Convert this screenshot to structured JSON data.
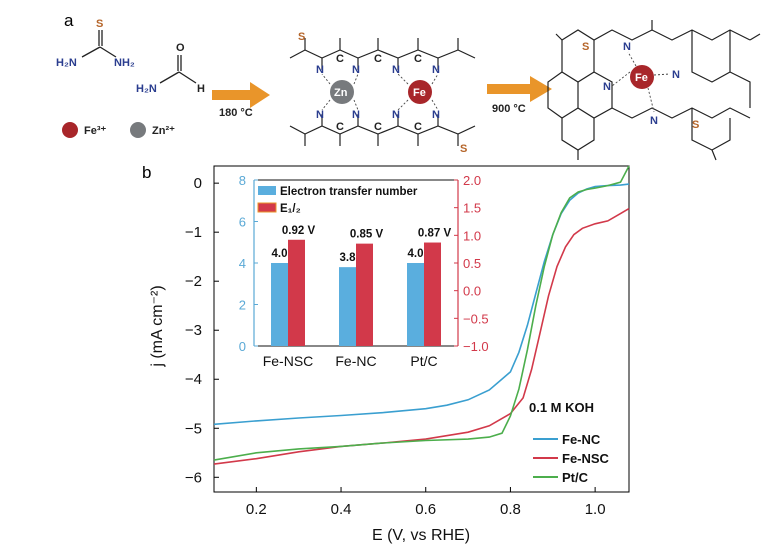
{
  "panel_a": {
    "label": "a",
    "reactants": {
      "S": "S",
      "H2N_left": "H₂N",
      "NH2": "NH₂",
      "O": "O",
      "H2N_form": "H₂N",
      "H": "H"
    },
    "cations": [
      {
        "label": "Fe³⁺",
        "color": "#a8262a"
      },
      {
        "label": "Zn²⁺",
        "color": "#777a7d"
      }
    ],
    "step1": "180 °C",
    "step2": "900 °C",
    "arrow_color": "#e9952a",
    "polymer_atoms": {
      "N": "N",
      "C": "C",
      "S": "S",
      "Zn": "Zn",
      "Fe": "Fe"
    },
    "product_atoms": {
      "S": "S",
      "N": "N",
      "Fe": "Fe"
    }
  },
  "panel_b": {
    "label": "b",
    "condition": "0.1 M KOH",
    "colors": {
      "Fe-NC": "#3a9fd0",
      "Fe-NSC": "#d2394a",
      "Pt/C": "#4cae4c"
    }
  },
  "chart_data": [
    {
      "type": "line",
      "xlabel": "E (V, vs RHE)",
      "ylabel": "j (mA cm⁻²)",
      "xlim": [
        0.1,
        1.08
      ],
      "ylim": [
        -6.3,
        0.35
      ],
      "xticks": [
        0.2,
        0.4,
        0.6,
        0.8,
        1.0
      ],
      "xtick_labels": [
        "0.2",
        "0.4",
        "0.6",
        "0.8",
        "1.0"
      ],
      "yticks": [
        0,
        -1,
        -2,
        -3,
        -4,
        -5,
        -6
      ],
      "ytick_labels": [
        "0",
        "−1",
        "−2",
        "−3",
        "−4",
        "−5",
        "−6"
      ],
      "legend_position": "bottom-right",
      "series": [
        {
          "name": "Fe-NC",
          "x": [
            0.1,
            0.2,
            0.3,
            0.4,
            0.5,
            0.6,
            0.65,
            0.7,
            0.75,
            0.8,
            0.82,
            0.84,
            0.86,
            0.88,
            0.9,
            0.92,
            0.94,
            0.96,
            0.98,
            1.0,
            1.03,
            1.06,
            1.08
          ],
          "y": [
            -4.92,
            -4.85,
            -4.79,
            -4.74,
            -4.68,
            -4.6,
            -4.53,
            -4.42,
            -4.22,
            -3.85,
            -3.45,
            -2.9,
            -2.25,
            -1.6,
            -1.05,
            -0.62,
            -0.35,
            -0.2,
            -0.12,
            -0.07,
            -0.05,
            -0.04,
            -0.02
          ]
        },
        {
          "name": "Fe-NSC",
          "x": [
            0.1,
            0.2,
            0.3,
            0.4,
            0.5,
            0.6,
            0.7,
            0.75,
            0.8,
            0.83,
            0.85,
            0.87,
            0.89,
            0.91,
            0.93,
            0.95,
            0.97,
            1.0,
            1.03,
            1.06,
            1.08
          ],
          "y": [
            -5.73,
            -5.62,
            -5.48,
            -5.37,
            -5.3,
            -5.22,
            -5.08,
            -4.95,
            -4.7,
            -4.38,
            -3.8,
            -3.05,
            -2.3,
            -1.7,
            -1.3,
            -1.05,
            -0.92,
            -0.83,
            -0.77,
            -0.62,
            -0.52
          ]
        },
        {
          "name": "Pt/C",
          "x": [
            0.1,
            0.2,
            0.3,
            0.4,
            0.5,
            0.6,
            0.7,
            0.75,
            0.78,
            0.8,
            0.82,
            0.84,
            0.86,
            0.88,
            0.9,
            0.92,
            0.94,
            0.96,
            0.98,
            1.0,
            1.03,
            1.06,
            1.08
          ],
          "y": [
            -5.65,
            -5.5,
            -5.42,
            -5.37,
            -5.3,
            -5.25,
            -5.22,
            -5.18,
            -5.1,
            -4.75,
            -4.2,
            -3.4,
            -2.5,
            -1.7,
            -1.05,
            -0.6,
            -0.3,
            -0.18,
            -0.13,
            -0.1,
            -0.05,
            0.02,
            0.38
          ]
        }
      ]
    },
    {
      "type": "bar",
      "categories": [
        "Fe-NSC",
        "Fe-NC",
        "Pt/C"
      ],
      "legend_position": "top-left",
      "series": [
        {
          "name": "Electron transfer number",
          "axis": "left",
          "values": [
            4.0,
            3.8,
            4.0
          ],
          "labels": [
            "4.0",
            "3.8",
            "4.0"
          ]
        },
        {
          "name": "E₁/₂",
          "axis": "right",
          "values": [
            0.92,
            0.85,
            0.87
          ],
          "labels": [
            "0.92 V",
            "0.85 V",
            "0.87 V"
          ]
        }
      ],
      "left_ylim": [
        0,
        8
      ],
      "left_yticks": [
        0,
        2,
        4,
        6,
        8
      ],
      "left_ytick_labels": [
        "0",
        "2",
        "4",
        "6",
        "8"
      ],
      "right_ylim": [
        -1.0,
        2.0
      ],
      "right_yticks": [
        2.0,
        1.5,
        1.0,
        0.5,
        0.0,
        -0.5,
        -1.0
      ],
      "right_ytick_labels": [
        "2.0",
        "1.5",
        "1.0",
        "0.5",
        "0.0",
        "−0.5",
        "−1.0"
      ]
    }
  ]
}
